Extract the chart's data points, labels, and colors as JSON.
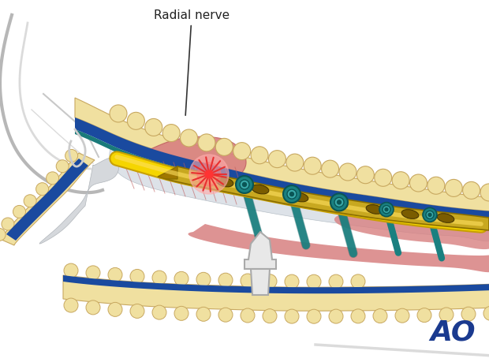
{
  "background_color": "#ffffff",
  "ao_text": "AO",
  "ao_color": "#1a3a8f",
  "ao_fontsize": 26,
  "radial_nerve_label": "Radial nerve",
  "label_color": "#222222",
  "label_fontsize": 11,
  "fat_color": "#f0e0a0",
  "fat_edge_color": "#c8a860",
  "cortex_blue": "#1a4a9f",
  "cortex_teal": "#1a7a7a",
  "plate_color": "#c8a820",
  "plate_dark": "#8a6e00",
  "nerve_yellow": "#f5d500",
  "nerve_edge": "#c8a000",
  "screw_teal": "#1a8080",
  "screw_dark": "#0a5555",
  "muscle_pink": "#e8a0a0",
  "muscle_red": "#cc6060",
  "muscle_dark": "#b04040",
  "gray_bone": "#c8ccd0",
  "gray_light": "#dde2e8",
  "white_bone": "#f0f0f0",
  "danger_red": "#e83030",
  "retractor_color": "#e8e8e8",
  "retractor_edge": "#aaaaaa",
  "outline_gray": "#999999"
}
